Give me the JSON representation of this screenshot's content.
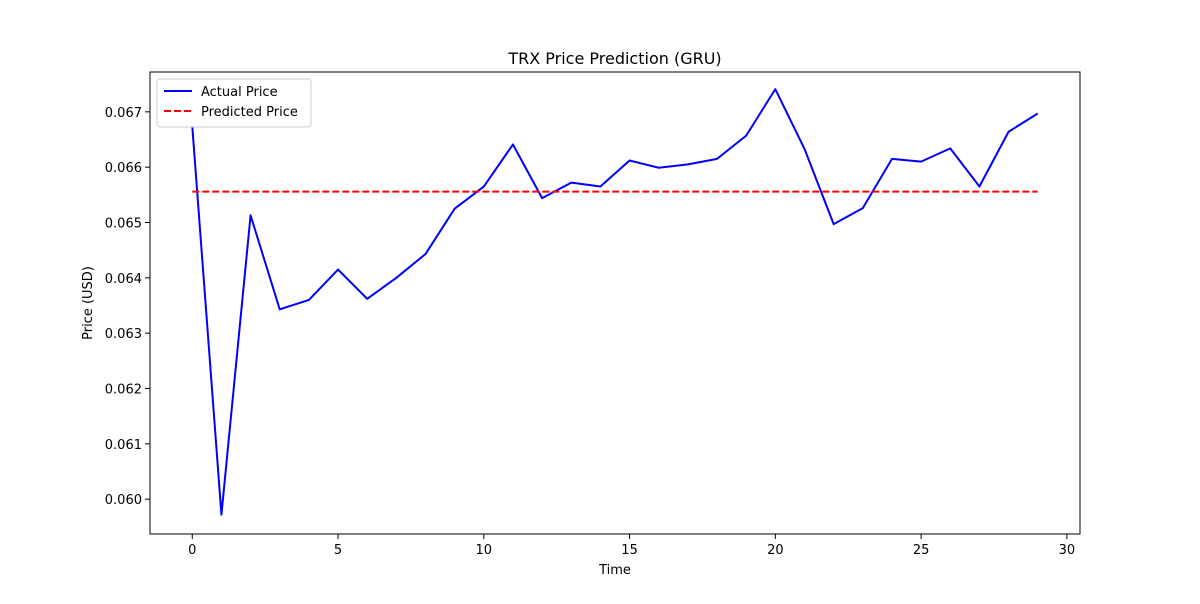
{
  "chart_data": {
    "type": "line",
    "title": "TRX Price Prediction (GRU)",
    "xlabel": "Time",
    "ylabel": "Price (USD)",
    "xlim": [
      -1.45,
      30.45
    ],
    "ylim": [
      0.05937,
      0.06772
    ],
    "x_ticks": [
      0,
      5,
      10,
      15,
      20,
      25,
      30
    ],
    "x_tick_labels": [
      "0",
      "5",
      "10",
      "15",
      "20",
      "25",
      "30"
    ],
    "y_ticks": [
      0.06,
      0.061,
      0.062,
      0.063,
      0.064,
      0.065,
      0.066,
      0.067
    ],
    "y_tick_labels": [
      "0.060",
      "0.061",
      "0.062",
      "0.063",
      "0.064",
      "0.065",
      "0.066",
      "0.067"
    ],
    "grid": false,
    "legend_position": "upper-left",
    "x": [
      0,
      1,
      2,
      3,
      4,
      5,
      6,
      7,
      8,
      9,
      10,
      11,
      12,
      13,
      14,
      15,
      16,
      17,
      18,
      19,
      20,
      21,
      22,
      23,
      24,
      25,
      26,
      27,
      28,
      29
    ],
    "series": [
      {
        "name": "Actual Price",
        "color": "#0000ff",
        "style": "solid",
        "values": [
          0.06674,
          0.05972,
          0.06513,
          0.06343,
          0.0636,
          0.06415,
          0.06362,
          0.064,
          0.06443,
          0.06525,
          0.06565,
          0.06641,
          0.06544,
          0.06572,
          0.06565,
          0.06612,
          0.06599,
          0.06605,
          0.06615,
          0.06657,
          0.06741,
          0.06633,
          0.06497,
          0.06526,
          0.06615,
          0.0661,
          0.06634,
          0.06565,
          0.06664,
          0.06697
        ]
      },
      {
        "name": "Predicted Price",
        "color": "#ff0000",
        "style": "dashed",
        "values": [
          0.065558,
          0.065558,
          0.065558,
          0.065558,
          0.065558,
          0.065558,
          0.065558,
          0.065558,
          0.065558,
          0.065558,
          0.065558,
          0.065558,
          0.065558,
          0.065558,
          0.065558,
          0.065558,
          0.065558,
          0.065558,
          0.065558,
          0.065558,
          0.065558,
          0.065558,
          0.065558,
          0.065558,
          0.065558,
          0.065558,
          0.065558,
          0.065558,
          0.065558,
          0.065558
        ]
      }
    ]
  }
}
